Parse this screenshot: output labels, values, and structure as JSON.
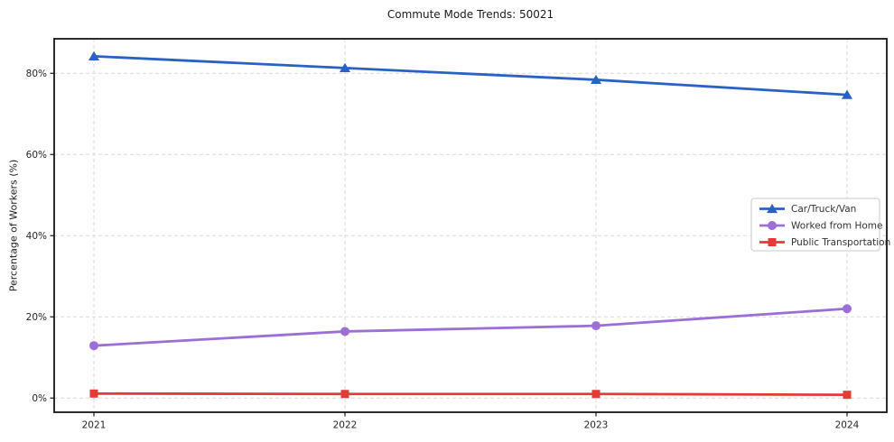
{
  "figure": {
    "title": "Commute Mode Trends: 50021"
  },
  "chart_data": {
    "type": "line",
    "title": "Commute Mode Trends: 50021",
    "xlabel": "",
    "ylabel": "Percentage of Workers (%)",
    "x": [
      "2021",
      "2022",
      "2023",
      "2024"
    ],
    "yticks": [
      0,
      20,
      40,
      60,
      80
    ],
    "ytick_labels": [
      "0%",
      "20%",
      "40%",
      "60%",
      "80%"
    ],
    "ylim": [
      -3.5,
      88.5
    ],
    "grid": true,
    "grid_style": "dashed",
    "legend_position": "center-right",
    "series": [
      {
        "name": "Car/Truck/Van",
        "color": "#2a62c4",
        "marker": "triangle",
        "values": [
          84.2,
          81.3,
          78.4,
          74.7
        ]
      },
      {
        "name": "Worked from Home",
        "color": "#9b6fd6",
        "marker": "circle",
        "values": [
          12.9,
          16.4,
          17.8,
          22.0
        ]
      },
      {
        "name": "Public Transportation",
        "color": "#e23c38",
        "marker": "square",
        "values": [
          1.1,
          1.0,
          1.0,
          0.8
        ]
      }
    ]
  }
}
